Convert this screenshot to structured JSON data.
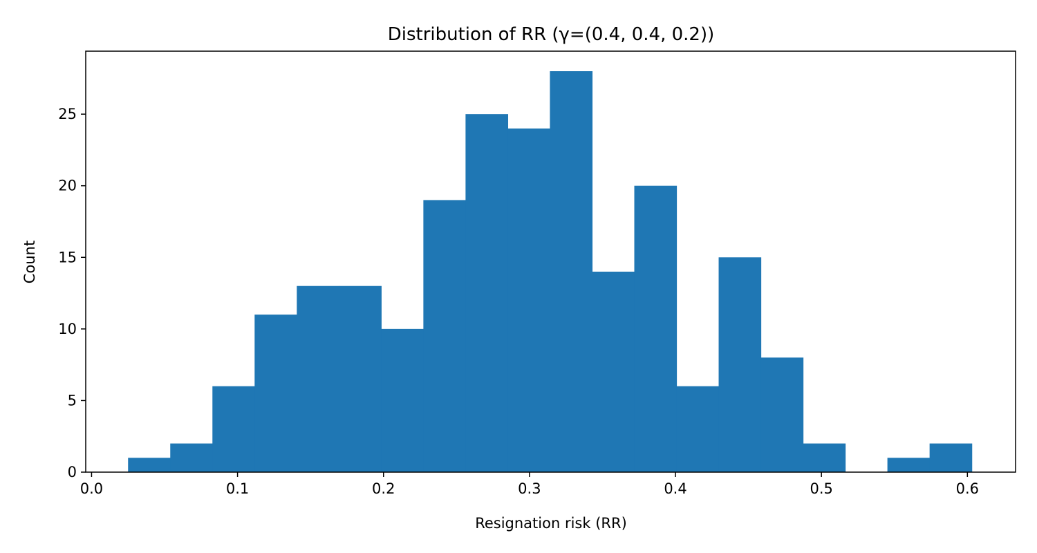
{
  "chart_data": {
    "type": "bar",
    "title": "Distribution of RR (γ=(0.4, 0.4, 0.2))",
    "xlabel": "Resignation risk (RR)",
    "ylabel": "Count",
    "xlim": [
      -0.004,
      0.633
    ],
    "ylim": [
      0,
      29.4
    ],
    "bin_edges": [
      0.025,
      0.0539,
      0.0828,
      0.1117,
      0.1406,
      0.1695,
      0.1984,
      0.2273,
      0.2562,
      0.2851,
      0.314,
      0.3429,
      0.3718,
      0.4007,
      0.4296,
      0.4585,
      0.4874,
      0.5163,
      0.5452,
      0.5741,
      0.603
    ],
    "counts": [
      1,
      2,
      6,
      11,
      13,
      13,
      10,
      19,
      25,
      24,
      28,
      14,
      20,
      6,
      15,
      8,
      2,
      0,
      1,
      2
    ],
    "x_ticks": [
      "0.0",
      "0.1",
      "0.2",
      "0.3",
      "0.4",
      "0.5",
      "0.6"
    ],
    "x_tick_values": [
      0.0,
      0.1,
      0.2,
      0.3,
      0.4,
      0.5,
      0.6
    ],
    "y_ticks": [
      "0",
      "5",
      "10",
      "15",
      "20",
      "25"
    ],
    "y_tick_values": [
      0,
      5,
      10,
      15,
      20,
      25
    ],
    "bar_color": "#1f77b4",
    "grid": false,
    "legend": "none"
  }
}
